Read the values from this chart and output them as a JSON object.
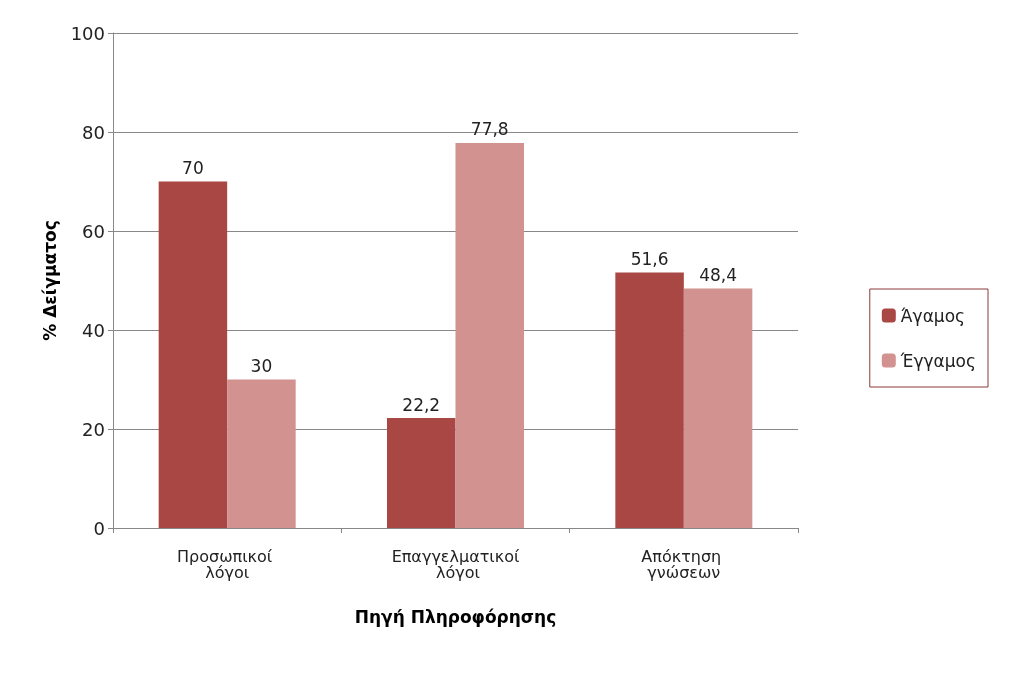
{
  "chart_data": {
    "type": "bar",
    "xlabel": "Πηγή Πληροφόρησης",
    "ylabel": "% Δείγματος",
    "categories": [
      "Προσωπικοί λόγοι",
      "Επαγγελματικοί λόγοι",
      "Απόκτηση γνώσεων"
    ],
    "series": [
      {
        "name": "Άγαμος",
        "color": "#a84744",
        "values": [
          70,
          22.2,
          51.6
        ],
        "value_labels": [
          "70",
          "22,2",
          "51,6"
        ]
      },
      {
        "name": "Έγγαμος",
        "color": "#d19290",
        "values": [
          30,
          77.8,
          48.4
        ],
        "value_labels": [
          "30",
          "77,8",
          "48,4"
        ]
      }
    ],
    "ylim": [
      0,
      100
    ],
    "yticks": [
      0,
      20,
      40,
      60,
      80,
      100
    ],
    "grid": "y",
    "legend": "right"
  }
}
